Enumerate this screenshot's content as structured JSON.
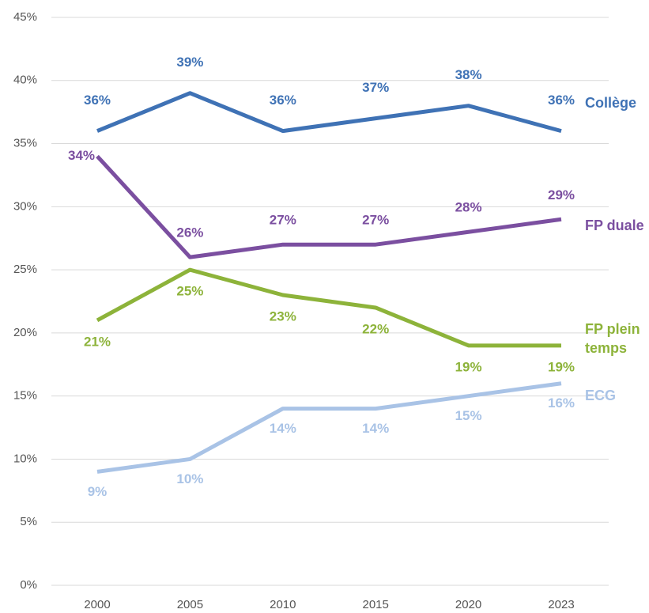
{
  "chart_data": {
    "type": "line",
    "categories": [
      "2000",
      "2005",
      "2010",
      "2015",
      "2020",
      "2023"
    ],
    "ylim": [
      0,
      45
    ],
    "yticks": [
      {
        "value": 0,
        "label": "0%"
      },
      {
        "value": 5,
        "label": "5%"
      },
      {
        "value": 10,
        "label": "10%"
      },
      {
        "value": 15,
        "label": "15%"
      },
      {
        "value": 20,
        "label": "20%"
      },
      {
        "value": 25,
        "label": "25%"
      },
      {
        "value": 30,
        "label": "30%"
      },
      {
        "value": 35,
        "label": "35%"
      },
      {
        "value": 40,
        "label": "40%"
      },
      {
        "value": 45,
        "label": "45%"
      }
    ],
    "grid": true,
    "series": [
      {
        "name": "Collège",
        "color": "#3f72b5",
        "values": [
          36,
          39,
          36,
          37,
          38,
          36
        ],
        "value_labels": [
          "36%",
          "39%",
          "36%",
          "37%",
          "38%",
          "36%"
        ]
      },
      {
        "name": "FP duale",
        "color": "#7b4fa0",
        "values": [
          34,
          26,
          27,
          27,
          28,
          29
        ],
        "value_labels": [
          "34%",
          "26%",
          "27%",
          "27%",
          "28%",
          "29%"
        ]
      },
      {
        "name": "FP plein temps",
        "color": "#8db33a",
        "values": [
          21,
          25,
          23,
          22,
          19,
          19
        ],
        "value_labels": [
          "21%",
          "25%",
          "23%",
          "22%",
          "19%",
          "19%"
        ]
      },
      {
        "name": "ECG",
        "color": "#a9c3e6",
        "values": [
          9,
          10,
          14,
          14,
          15,
          16
        ],
        "value_labels": [
          "9%",
          "10%",
          "14%",
          "14%",
          "15%",
          "16%"
        ]
      }
    ]
  }
}
